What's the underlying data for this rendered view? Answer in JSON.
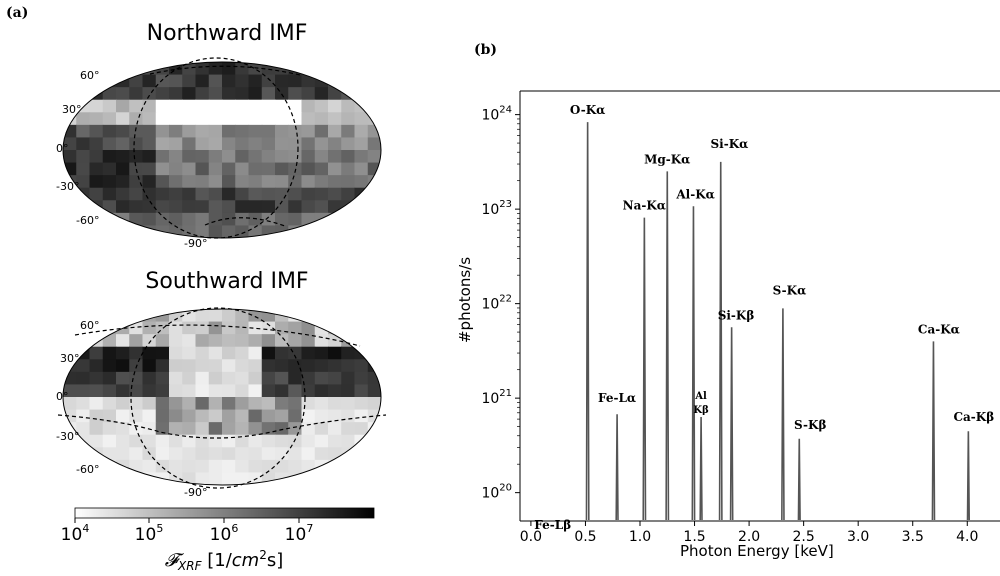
{
  "panel_a": {
    "label": "(a)",
    "maps": [
      {
        "title": "Northward IMF",
        "lat_labels": [
          "60°",
          "30°",
          "0°",
          "-30°",
          "-60°",
          "-90°"
        ],
        "band_intensity": [
          0.72,
          0.0,
          0.45,
          0.55,
          0.75,
          0.6
        ],
        "orientation": "north"
      },
      {
        "title": "Southward IMF",
        "lat_labels": [
          "60°",
          "30°",
          "0°",
          "-30°",
          "-60°",
          "-90°"
        ],
        "band_intensity": [
          0.2,
          0.85,
          0.75,
          0.25,
          0.1,
          0.1
        ],
        "orientation": "south"
      }
    ],
    "colorbar": {
      "ticks": [
        "10",
        "10",
        "10",
        "10"
      ],
      "exponents": [
        "4",
        "5",
        "6",
        "7"
      ],
      "label_main": "𝓕",
      "label_sub": "XRF",
      "label_unit_pre": "[1/",
      "label_unit_var": "cm",
      "label_unit_exp": "2",
      "label_unit_post": "s]",
      "colormap": "grayscale (white low, black high)",
      "range": [
        "1e4",
        "6e7"
      ]
    }
  },
  "panel_b": {
    "label": "(b)"
  },
  "chart_data": {
    "type": "line",
    "title": "",
    "xlabel": "Photon Energy [keV]",
    "ylabel": "#photons/s",
    "xlim": [
      -0.1,
      4.3
    ],
    "ylim_log10": [
      19.7,
      24.25
    ],
    "y_scale": "log",
    "x_ticks": [
      "0.0",
      "0.5",
      "1.0",
      "1.5",
      "2.0",
      "2.5",
      "3.0",
      "3.5",
      "4.0"
    ],
    "y_tick_base": "10",
    "y_tick_exponents": [
      "20",
      "21",
      "22",
      "23",
      "24"
    ],
    "line_color": "#555555",
    "peaks": [
      {
        "label": "Fe-Lβ",
        "energy": 0.12,
        "log10_value": 19.55
      },
      {
        "label": "O-Kα",
        "energy": 0.52,
        "log10_value": 23.92
      },
      {
        "label": "Fe-Lα",
        "energy": 0.79,
        "log10_value": 20.83
      },
      {
        "label": "Na-Kα",
        "energy": 1.04,
        "log10_value": 22.91
      },
      {
        "label": "Mg-Kα",
        "energy": 1.25,
        "log10_value": 23.4
      },
      {
        "label": "Al-Kα",
        "energy": 1.49,
        "log10_value": 23.03
      },
      {
        "label": "Al Kβ",
        "energy": 1.56,
        "log10_value": 20.8
      },
      {
        "label": "Si-Kα",
        "energy": 1.74,
        "log10_value": 23.5
      },
      {
        "label": "Si-Kβ",
        "energy": 1.84,
        "log10_value": 21.75
      },
      {
        "label": "S-Kα",
        "energy": 2.31,
        "log10_value": 21.95
      },
      {
        "label": "S-Kβ",
        "energy": 2.46,
        "log10_value": 20.57
      },
      {
        "label": "Ca-Kα",
        "energy": 3.69,
        "log10_value": 21.6
      },
      {
        "label": "Ca-Kβ",
        "energy": 4.01,
        "log10_value": 20.65
      }
    ]
  }
}
